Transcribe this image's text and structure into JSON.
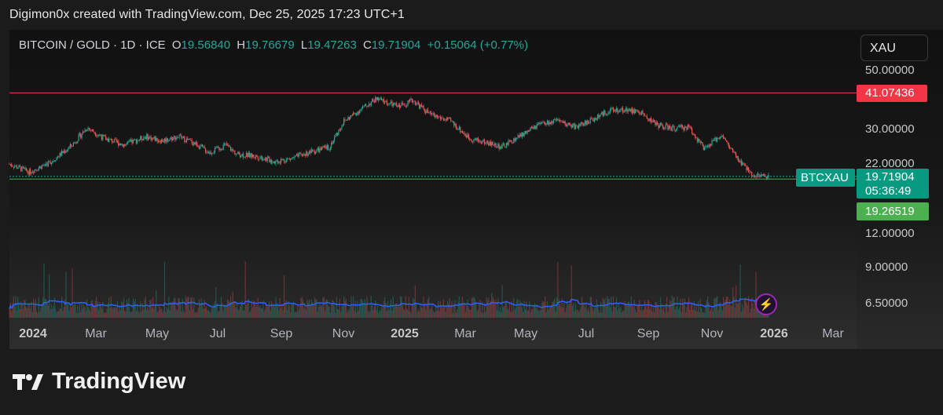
{
  "credit": "Digimon0x created with TradingView.com, Dec 25, 2025 17:23 UTC+1",
  "legend": {
    "symbol": "BITCOIN / GOLD · 1D · ICE",
    "o_label": "O",
    "o_value": "19.56840",
    "h_label": "H",
    "h_value": "19.76679",
    "l_label": "L",
    "l_value": "19.47263",
    "c_label": "C",
    "c_value": "19.71904",
    "change": "+0.15064 (+0.77%)"
  },
  "currency_button": "XAU",
  "price_scale": {
    "labels": [
      "50.00000",
      "30.00000",
      "22.00000",
      "12.00000",
      "9.00000",
      "6.50000"
    ]
  },
  "tags": {
    "red_line_price": "41.07436",
    "ticker": "BTCXAU",
    "last_price": "19.71904",
    "countdown": "05:36:49",
    "green_line_price": "19.26519"
  },
  "time_axis": {
    "labels": [
      "2024",
      "Mar",
      "May",
      "Jul",
      "Sep",
      "Nov",
      "2025",
      "Mar",
      "May",
      "Jul",
      "Sep",
      "Nov",
      "2026",
      "Mar"
    ],
    "year_labels": [
      "2024",
      "2025",
      "2026"
    ]
  },
  "colors": {
    "up": "#26a69a",
    "down": "#ef5350",
    "red_line": "#f23645",
    "green_line": "#4caf50",
    "volume_ma": "#2962ff"
  },
  "brand": "TradingView",
  "chart_data": {
    "type": "candlestick",
    "symbol": "BTCXAU",
    "scale": "log",
    "horizontal_lines": [
      41.07436,
      19.26519
    ],
    "ohlc_last": {
      "open": 19.5684,
      "high": 19.76679,
      "low": 19.47263,
      "close": 19.71904
    },
    "close_series": {
      "x": [
        "2024-01-01",
        "2024-01-20",
        "2024-02-10",
        "2024-03-01",
        "2024-03-15",
        "2024-04-01",
        "2024-04-20",
        "2024-05-10",
        "2024-05-25",
        "2024-06-10",
        "2024-06-25",
        "2024-07-10",
        "2024-07-25",
        "2024-08-05",
        "2024-08-25",
        "2024-09-10",
        "2024-09-25",
        "2024-10-15",
        "2024-11-01",
        "2024-11-15",
        "2024-12-01",
        "2024-12-16",
        "2025-01-05",
        "2025-01-20",
        "2025-02-05",
        "2025-02-25",
        "2025-03-15",
        "2025-04-01",
        "2025-04-15",
        "2025-05-01",
        "2025-05-20",
        "2025-06-05",
        "2025-06-25",
        "2025-07-10",
        "2025-07-25",
        "2025-08-10",
        "2025-08-25",
        "2025-09-10",
        "2025-09-25",
        "2025-10-10",
        "2025-10-25",
        "2025-11-10",
        "2025-11-25",
        "2025-12-10",
        "2025-12-25"
      ],
      "values": [
        22.0,
        20.5,
        22.5,
        26.0,
        30.3,
        27.5,
        26.0,
        28.0,
        27.0,
        28.0,
        26.5,
        24.3,
        26.0,
        24.0,
        23.5,
        22.5,
        23.0,
        24.5,
        25.5,
        32.0,
        35.5,
        39.0,
        36.5,
        38.5,
        34.0,
        32.0,
        27.5,
        26.5,
        25.5,
        28.0,
        31.0,
        32.0,
        30.5,
        32.5,
        35.0,
        35.5,
        34.5,
        31.0,
        30.0,
        30.5,
        25.0,
        28.5,
        23.0,
        20.0,
        19.72
      ]
    },
    "xlabel": "",
    "ylabel": "",
    "ylim": [
      6.5,
      52
    ]
  }
}
